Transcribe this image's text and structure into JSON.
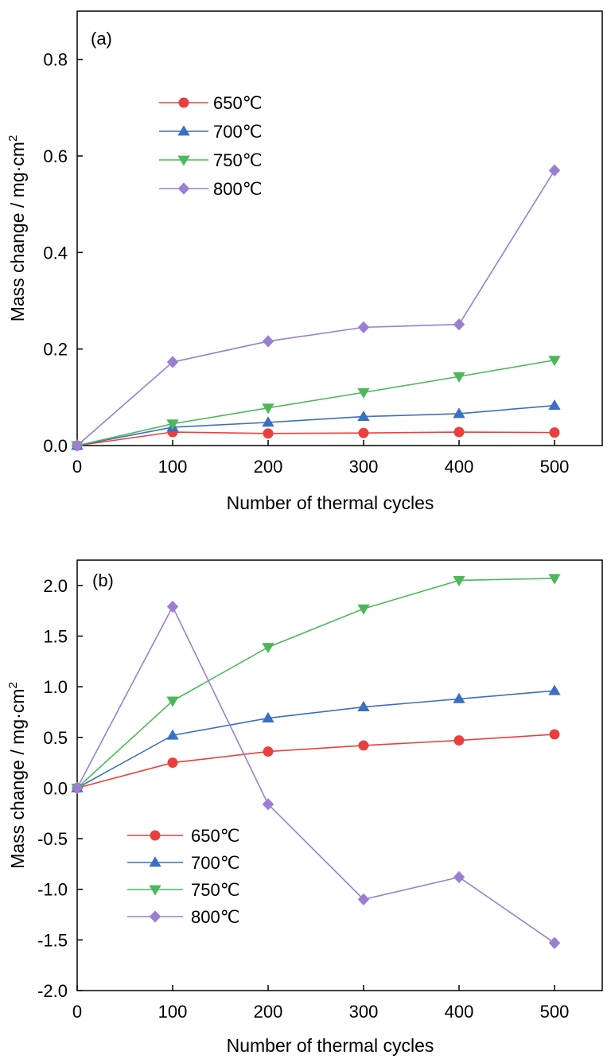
{
  "chart_data": [
    {
      "type": "line",
      "panel_label": "(a)",
      "xlabel": "Number of thermal cycles",
      "ylabel": "Mass change  / mg·cm",
      "ylabel_sup": "2",
      "xlim": [
        0,
        550
      ],
      "ylim": [
        0,
        0.9
      ],
      "xticks": [
        "0",
        "100",
        "200",
        "300",
        "400",
        "500"
      ],
      "yticks": [
        "0.0",
        "0.2",
        "0.4",
        "0.6",
        "0.8"
      ],
      "x": [
        0,
        100,
        200,
        300,
        400,
        500
      ],
      "legend_position": "upper-left",
      "series": [
        {
          "name": "650℃",
          "color": "#e8403d",
          "marker": "circle",
          "values": [
            0,
            0.028,
            0.025,
            0.026,
            0.028,
            0.027
          ]
        },
        {
          "name": "700℃",
          "color": "#3a6fc4",
          "marker": "triangle-up",
          "values": [
            0,
            0.038,
            0.048,
            0.06,
            0.066,
            0.083
          ]
        },
        {
          "name": "750℃",
          "color": "#4db85a",
          "marker": "triangle-down",
          "values": [
            0,
            0.045,
            0.078,
            0.11,
            0.143,
            0.177
          ]
        },
        {
          "name": "800℃",
          "color": "#9a7fd1",
          "marker": "diamond",
          "values": [
            0,
            0.173,
            0.216,
            0.245,
            0.251,
            0.57
          ]
        }
      ]
    },
    {
      "type": "line",
      "panel_label": "(b)",
      "xlabel": "Number of thermal cycles",
      "ylabel": "Mass change / mg·cm",
      "ylabel_sup": "2",
      "xlim": [
        0,
        550
      ],
      "ylim": [
        -2.0,
        2.25
      ],
      "xticks": [
        "0",
        "100",
        "200",
        "300",
        "400",
        "500"
      ],
      "yticks": [
        "-2.0",
        "-1.5",
        "-1.0",
        "-0.5",
        "0.0",
        "0.5",
        "1.0",
        "1.5",
        "2.0"
      ],
      "x": [
        0,
        100,
        200,
        300,
        400,
        500
      ],
      "legend_position": "lower-left",
      "series": [
        {
          "name": "650℃",
          "color": "#e8403d",
          "marker": "circle",
          "values": [
            0,
            0.25,
            0.36,
            0.42,
            0.47,
            0.53
          ]
        },
        {
          "name": "700℃",
          "color": "#3a6fc4",
          "marker": "triangle-up",
          "values": [
            0,
            0.52,
            0.69,
            0.8,
            0.88,
            0.96
          ]
        },
        {
          "name": "750℃",
          "color": "#4db85a",
          "marker": "triangle-down",
          "values": [
            0,
            0.86,
            1.39,
            1.77,
            2.05,
            2.07
          ]
        },
        {
          "name": "800℃",
          "color": "#9a7fd1",
          "marker": "diamond",
          "values": [
            0,
            1.79,
            -0.16,
            -1.1,
            -0.88,
            -1.53
          ]
        }
      ]
    }
  ]
}
